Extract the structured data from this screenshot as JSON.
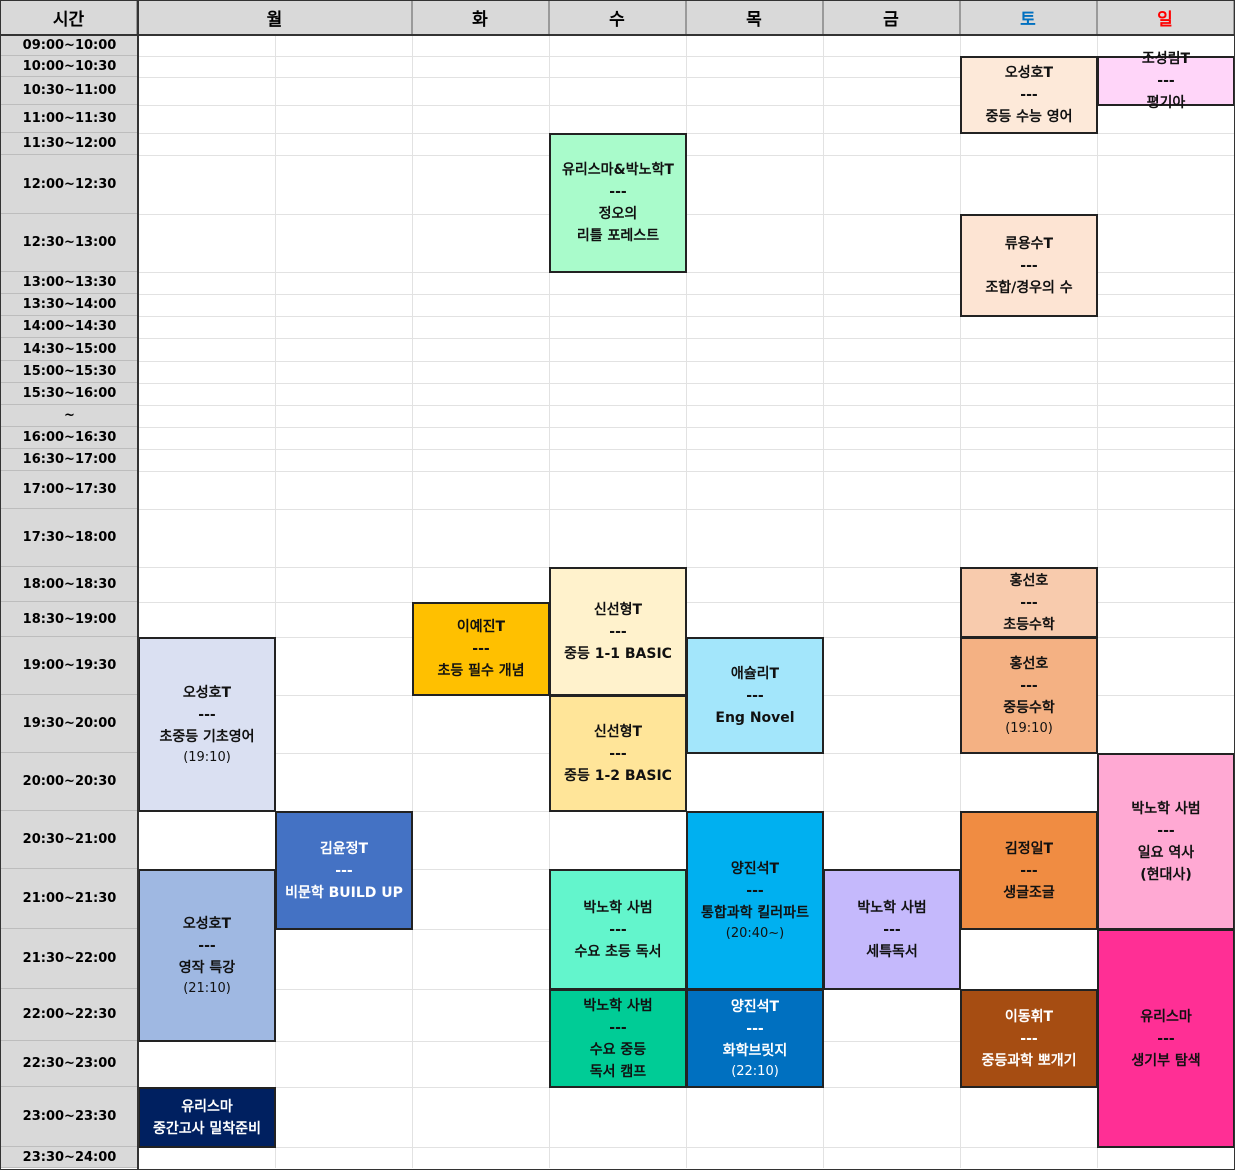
{
  "header": {
    "time": "시간",
    "days": [
      {
        "label": "월",
        "color": "#000000"
      },
      {
        "label": "화",
        "color": "#000000"
      },
      {
        "label": "수",
        "color": "#000000"
      },
      {
        "label": "목",
        "color": "#000000"
      },
      {
        "label": "금",
        "color": "#000000"
      },
      {
        "label": "토",
        "color": "#0070c0"
      },
      {
        "label": "일",
        "color": "#ff0000"
      }
    ]
  },
  "time_slots": [
    "09:00~10:00",
    "10:00~10:30",
    "10:30~11:00",
    "11:00~11:30",
    "11:30~12:00",
    "12:00~12:30",
    "12:30~13:00",
    "13:00~13:30",
    "13:30~14:00",
    "14:00~14:30",
    "14:30~15:00",
    "15:00~15:30",
    "15:30~16:00",
    "~",
    "16:00~16:30",
    "16:30~17:00",
    "17:00~17:30",
    "17:30~18:00",
    "18:00~18:30",
    "18:30~19:00",
    "19:00~19:30",
    "19:30~20:00",
    "20:00~20:30",
    "20:30~21:00",
    "21:00~21:30",
    "21:30~22:00",
    "22:00~22:30",
    "22:30~23:00",
    "23:00~23:30",
    "23:30~24:00"
  ],
  "classes": [
    {
      "day": "토",
      "start": "10:00",
      "end": "11:30",
      "lines": [
        "오성호T",
        "---",
        "중등 수능 영어"
      ],
      "color": "#fde9d9"
    },
    {
      "day": "일",
      "start": "10:00",
      "end": "11:00",
      "lines": [
        "조성림T",
        "---",
        "평기아"
      ],
      "color": "#ffd5f9"
    },
    {
      "day": "수",
      "start": "11:30",
      "end": "13:00",
      "lines": [
        "유리스마&박노학T",
        "---",
        "정오의",
        "리틀 포레스트"
      ],
      "color": "#a9fbcb"
    },
    {
      "day": "토",
      "start": "12:30",
      "end": "14:00",
      "lines": [
        "류용수T",
        "---",
        "조합/경우의 수"
      ],
      "color": "#fde4d3"
    },
    {
      "day": "수",
      "start": "18:00",
      "end": "19:30",
      "lines": [
        "신선형T",
        "---",
        "중등 1-1 BASIC"
      ],
      "color": "#fff2cc"
    },
    {
      "day": "토",
      "start": "18:00",
      "end": "19:00",
      "lines": [
        "홍선호",
        "---",
        "초등수학"
      ],
      "color": "#f8cbad"
    },
    {
      "day": "화",
      "start": "18:30",
      "end": "19:30",
      "lines": [
        "이예진T",
        "---",
        "초등 필수 개념"
      ],
      "color": "#ffc000"
    },
    {
      "day": "월",
      "start": "19:00",
      "end": "20:30",
      "lines": [
        "오성호T",
        "---",
        "초중등 기초영어"
      ],
      "sub": "(19:10)",
      "color": "#dae0f2"
    },
    {
      "day": "목",
      "start": "19:00",
      "end": "20:00",
      "lines": [
        "애슐리T",
        "---",
        "Eng Novel"
      ],
      "color": "#a3e6fb"
    },
    {
      "day": "토",
      "start": "19:00",
      "end": "20:00",
      "lines": [
        "홍선호",
        "---",
        "중등수학"
      ],
      "sub": "(19:10)",
      "color": "#f4b183"
    },
    {
      "day": "수",
      "start": "19:30",
      "end": "20:30",
      "lines": [
        "신선형T",
        "---",
        "중등 1-2 BASIC"
      ],
      "color": "#ffe599"
    },
    {
      "day": "일",
      "start": "20:00",
      "end": "21:30",
      "lines": [
        "박노학 사범",
        "---",
        "일요 역사",
        "(현대사)"
      ],
      "color": "#ffa9d3"
    },
    {
      "day": "월2",
      "start": "20:30",
      "end": "21:30",
      "lines": [
        "김윤정T",
        "---",
        "비문학 BUILD UP"
      ],
      "color": "#4472c4",
      "dark": true
    },
    {
      "day": "목",
      "start": "20:30",
      "end": "22:00",
      "lines": [
        "양진석T",
        "---",
        "통합과학 킬러파트"
      ],
      "sub": "(20:40~)",
      "color": "#00b0f0"
    },
    {
      "day": "토",
      "start": "20:30",
      "end": "21:30",
      "lines": [
        "김정일T",
        "---",
        "생글조글"
      ],
      "color": "#f08c42"
    },
    {
      "day": "월",
      "start": "21:00",
      "end": "22:30",
      "lines": [
        "오성호T",
        "---",
        "영작 특강"
      ],
      "sub": "(21:10)",
      "color": "#9fb8e2"
    },
    {
      "day": "수",
      "start": "21:00",
      "end": "22:00",
      "lines": [
        "박노학 사범",
        "---",
        "수요 초등 독서"
      ],
      "color": "#63f5cc"
    },
    {
      "day": "금",
      "start": "21:00",
      "end": "22:00",
      "lines": [
        "박노학 사범",
        "---",
        "세특독서"
      ],
      "color": "#c5b9fc"
    },
    {
      "day": "일",
      "start": "21:30",
      "end": "23:30",
      "lines": [
        "유리스마",
        "---",
        "생기부 탐색"
      ],
      "color": "#ff2f95"
    },
    {
      "day": "수",
      "start": "22:00",
      "end": "23:00",
      "lines": [
        "박노학 사범",
        "---",
        "수요 중등",
        "독서 캠프"
      ],
      "color": "#00cc96"
    },
    {
      "day": "목",
      "start": "22:00",
      "end": "23:00",
      "lines": [
        "양진석T",
        "---",
        "화학브릿지"
      ],
      "sub": "(22:10)",
      "color": "#0070c0",
      "dark": true
    },
    {
      "day": "토",
      "start": "22:00",
      "end": "23:00",
      "lines": [
        "이동휘T",
        "---",
        "중등과학 뽀개기"
      ],
      "color": "#a64d12",
      "dark": true
    },
    {
      "day": "월",
      "start": "23:00",
      "end": "23:30",
      "lines": [
        "유리스마",
        "중간고사 밀착준비"
      ],
      "color": "#002060",
      "dark": true
    }
  ]
}
